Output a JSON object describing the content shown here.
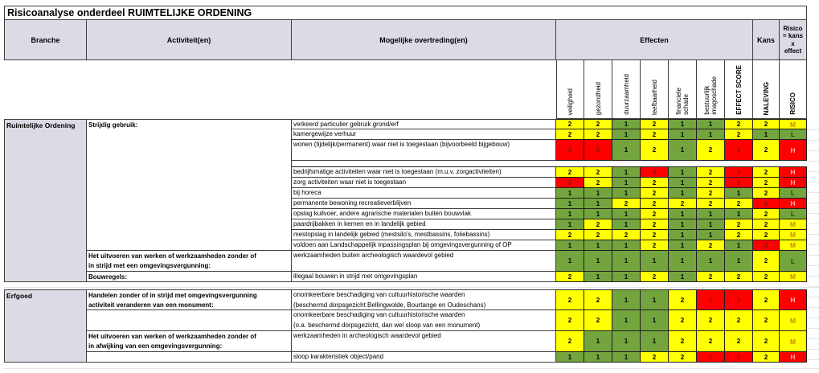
{
  "title": "Risicoanalyse onderdeel RUIMTELIJKE ORDENING",
  "header": {
    "branche": "Branche",
    "activiteiten": "Activiteit(en)",
    "overtredingen": "Mogelijke overtreding(en)",
    "effecten": "Effecten",
    "kans": "Kans",
    "risico": "Risico\n= kans\nx\neffect",
    "effect_columns": [
      "veiligheid",
      "gezondheid",
      "duurzaamheid",
      "leefbaarheid",
      "financiele\nschade",
      "bestuurlijk\nimagoschade",
      "EFFECT SCORE"
    ],
    "kans_column": "NALEVING",
    "risico_column": "RISICO"
  },
  "colors": {
    "header_fill": "#DBDBE6",
    "score_low_green": "#73A43E",
    "score_mid_yellow": "#FFFF00",
    "score_high_red": "#FF0000",
    "risk_L_text": "#25470E",
    "risk_M_text": "#C38A00",
    "risk_H_text": "#FFABAB"
  },
  "sections": [
    {
      "branche": "Ruimtelijke Ordening",
      "groups": [
        {
          "activiteit": "Strijdig gebruik:",
          "rows": [
            {
              "overtreding": "verkeerd particulier gebruik grond/erf",
              "values": [
                2,
                2,
                1,
                2,
                1,
                1,
                2
              ],
              "naleving": 2,
              "risico": "M",
              "h": 1
            },
            {
              "overtreding": "kamergewijze verhuur",
              "values": [
                2,
                2,
                1,
                2,
                1,
                1,
                2
              ],
              "naleving": 1,
              "risico": "L",
              "h": 1
            },
            {
              "overtreding": "wonen (tijdelijk/permanent) waar niet is toegestaan (bijvoorbeeld  bijgebouw)",
              "values": [
                3,
                3,
                1,
                2,
                1,
                2,
                3
              ],
              "naleving": 2,
              "risico": "H",
              "h": 2,
              "spacer_after": true
            },
            {
              "overtreding": "bedrijfsmatige activiteiten waar niet is toegestaan (m.u.v. zorgactiviteiten)",
              "values": [
                2,
                2,
                1,
                3,
                1,
                2,
                3
              ],
              "naleving": 2,
              "risico": "H",
              "h": 1
            },
            {
              "overtreding": "zorg activiteiten waar niet is toegestaan",
              "values": [
                3,
                2,
                1,
                2,
                1,
                2,
                3
              ],
              "naleving": 2,
              "risico": "H",
              "h": 1
            },
            {
              "overtreding": "bij horeca",
              "values": [
                1,
                1,
                1,
                2,
                1,
                2,
                1
              ],
              "naleving": 2,
              "risico": "L",
              "h": 1
            },
            {
              "overtreding": "permanente bewoning recreatieverblijven",
              "values": [
                1,
                1,
                2,
                2,
                2,
                2,
                2
              ],
              "naleving": 3,
              "risico": "H",
              "h": 1
            },
            {
              "overtreding": "opslag kuilvoer, andere agrarische materialen buiten bouwvlak",
              "values": [
                1,
                1,
                1,
                2,
                1,
                1,
                1
              ],
              "naleving": 2,
              "risico": "L",
              "h": 1
            },
            {
              "overtreding": "paardrijbakken in kernen en in landelijk gebied",
              "values": [
                1,
                2,
                1,
                2,
                1,
                1,
                2
              ],
              "naleving": 2,
              "risico": "M",
              "h": 1
            },
            {
              "overtreding": "mestopslag in landelijk gebied (mestsilo's, mestbassins, foliebassins)",
              "values": [
                2,
                2,
                2,
                2,
                1,
                1,
                2
              ],
              "naleving": 2,
              "risico": "M",
              "h": 1
            },
            {
              "overtreding": "voldoen aan Landschappelijk inpassingsplan bij omgevingsvergunning of OP",
              "values": [
                1,
                1,
                1,
                2,
                1,
                2,
                1
              ],
              "naleving": 3,
              "risico": "M",
              "h": 1
            }
          ]
        },
        {
          "activiteit": "Het uitvoeren van werken of werkzaamheden zonder of\nin strijd met een omgevingsvergunning:",
          "rows": [
            {
              "overtreding": "werkzaamheden buiten archeologisch waardevol gebied",
              "values": [
                1,
                1,
                1,
                1,
                1,
                1,
                1
              ],
              "naleving": 2,
              "risico": "L",
              "h": 2
            }
          ]
        },
        {
          "activiteit": "Bouwregels:",
          "rows": [
            {
              "overtreding": "illegaal bouwen in strijd met omgevingsplan",
              "values": [
                2,
                1,
                1,
                2,
                1,
                2,
                2
              ],
              "naleving": 2,
              "risico": "M",
              "h": 1
            }
          ]
        }
      ]
    },
    {
      "branche": "Erfgoed",
      "groups": [
        {
          "activiteit": "Handelen zonder of in strijd met omgevingsvergunning\nactiviteit veranderen van een monument:",
          "rows": [
            {
              "overtreding": "onomkeerbare beschadiging van cultuurhistorische waarden\n(beschermd dorpsgezicht Bellingwolde, Bourtange en Oudeschans)",
              "values": [
                2,
                2,
                1,
                1,
                2,
                3,
                3
              ],
              "naleving": 2,
              "risico": "H",
              "h": 2
            }
          ]
        },
        {
          "activiteit": "",
          "rows": [
            {
              "overtreding": "onomkeerbare beschadiging van cultuurhistorische waarden\n(o.a. beschermd dorpsgezicht, dan wel sloop van een monument)",
              "values": [
                2,
                2,
                1,
                1,
                2,
                2,
                2
              ],
              "naleving": 2,
              "risico": "M",
              "h": 2
            }
          ]
        },
        {
          "activiteit": "Het uitvoeren van werken of werkzaamheden zonder of\nin afwijking van een omgevingsvergunning:",
          "rows": [
            {
              "overtreding": "werkzaamheden in archeologisch waardevol gebied",
              "values": [
                2,
                1,
                1,
                1,
                2,
                2,
                2
              ],
              "naleving": 2,
              "risico": "M",
              "h": 2
            }
          ]
        },
        {
          "activiteit": "",
          "rows": [
            {
              "overtreding": "sloop karakteristiek object/pand",
              "values": [
                1,
                1,
                1,
                2,
                2,
                3,
                3
              ],
              "naleving": 2,
              "risico": "H",
              "h": 1
            }
          ]
        }
      ]
    }
  ]
}
